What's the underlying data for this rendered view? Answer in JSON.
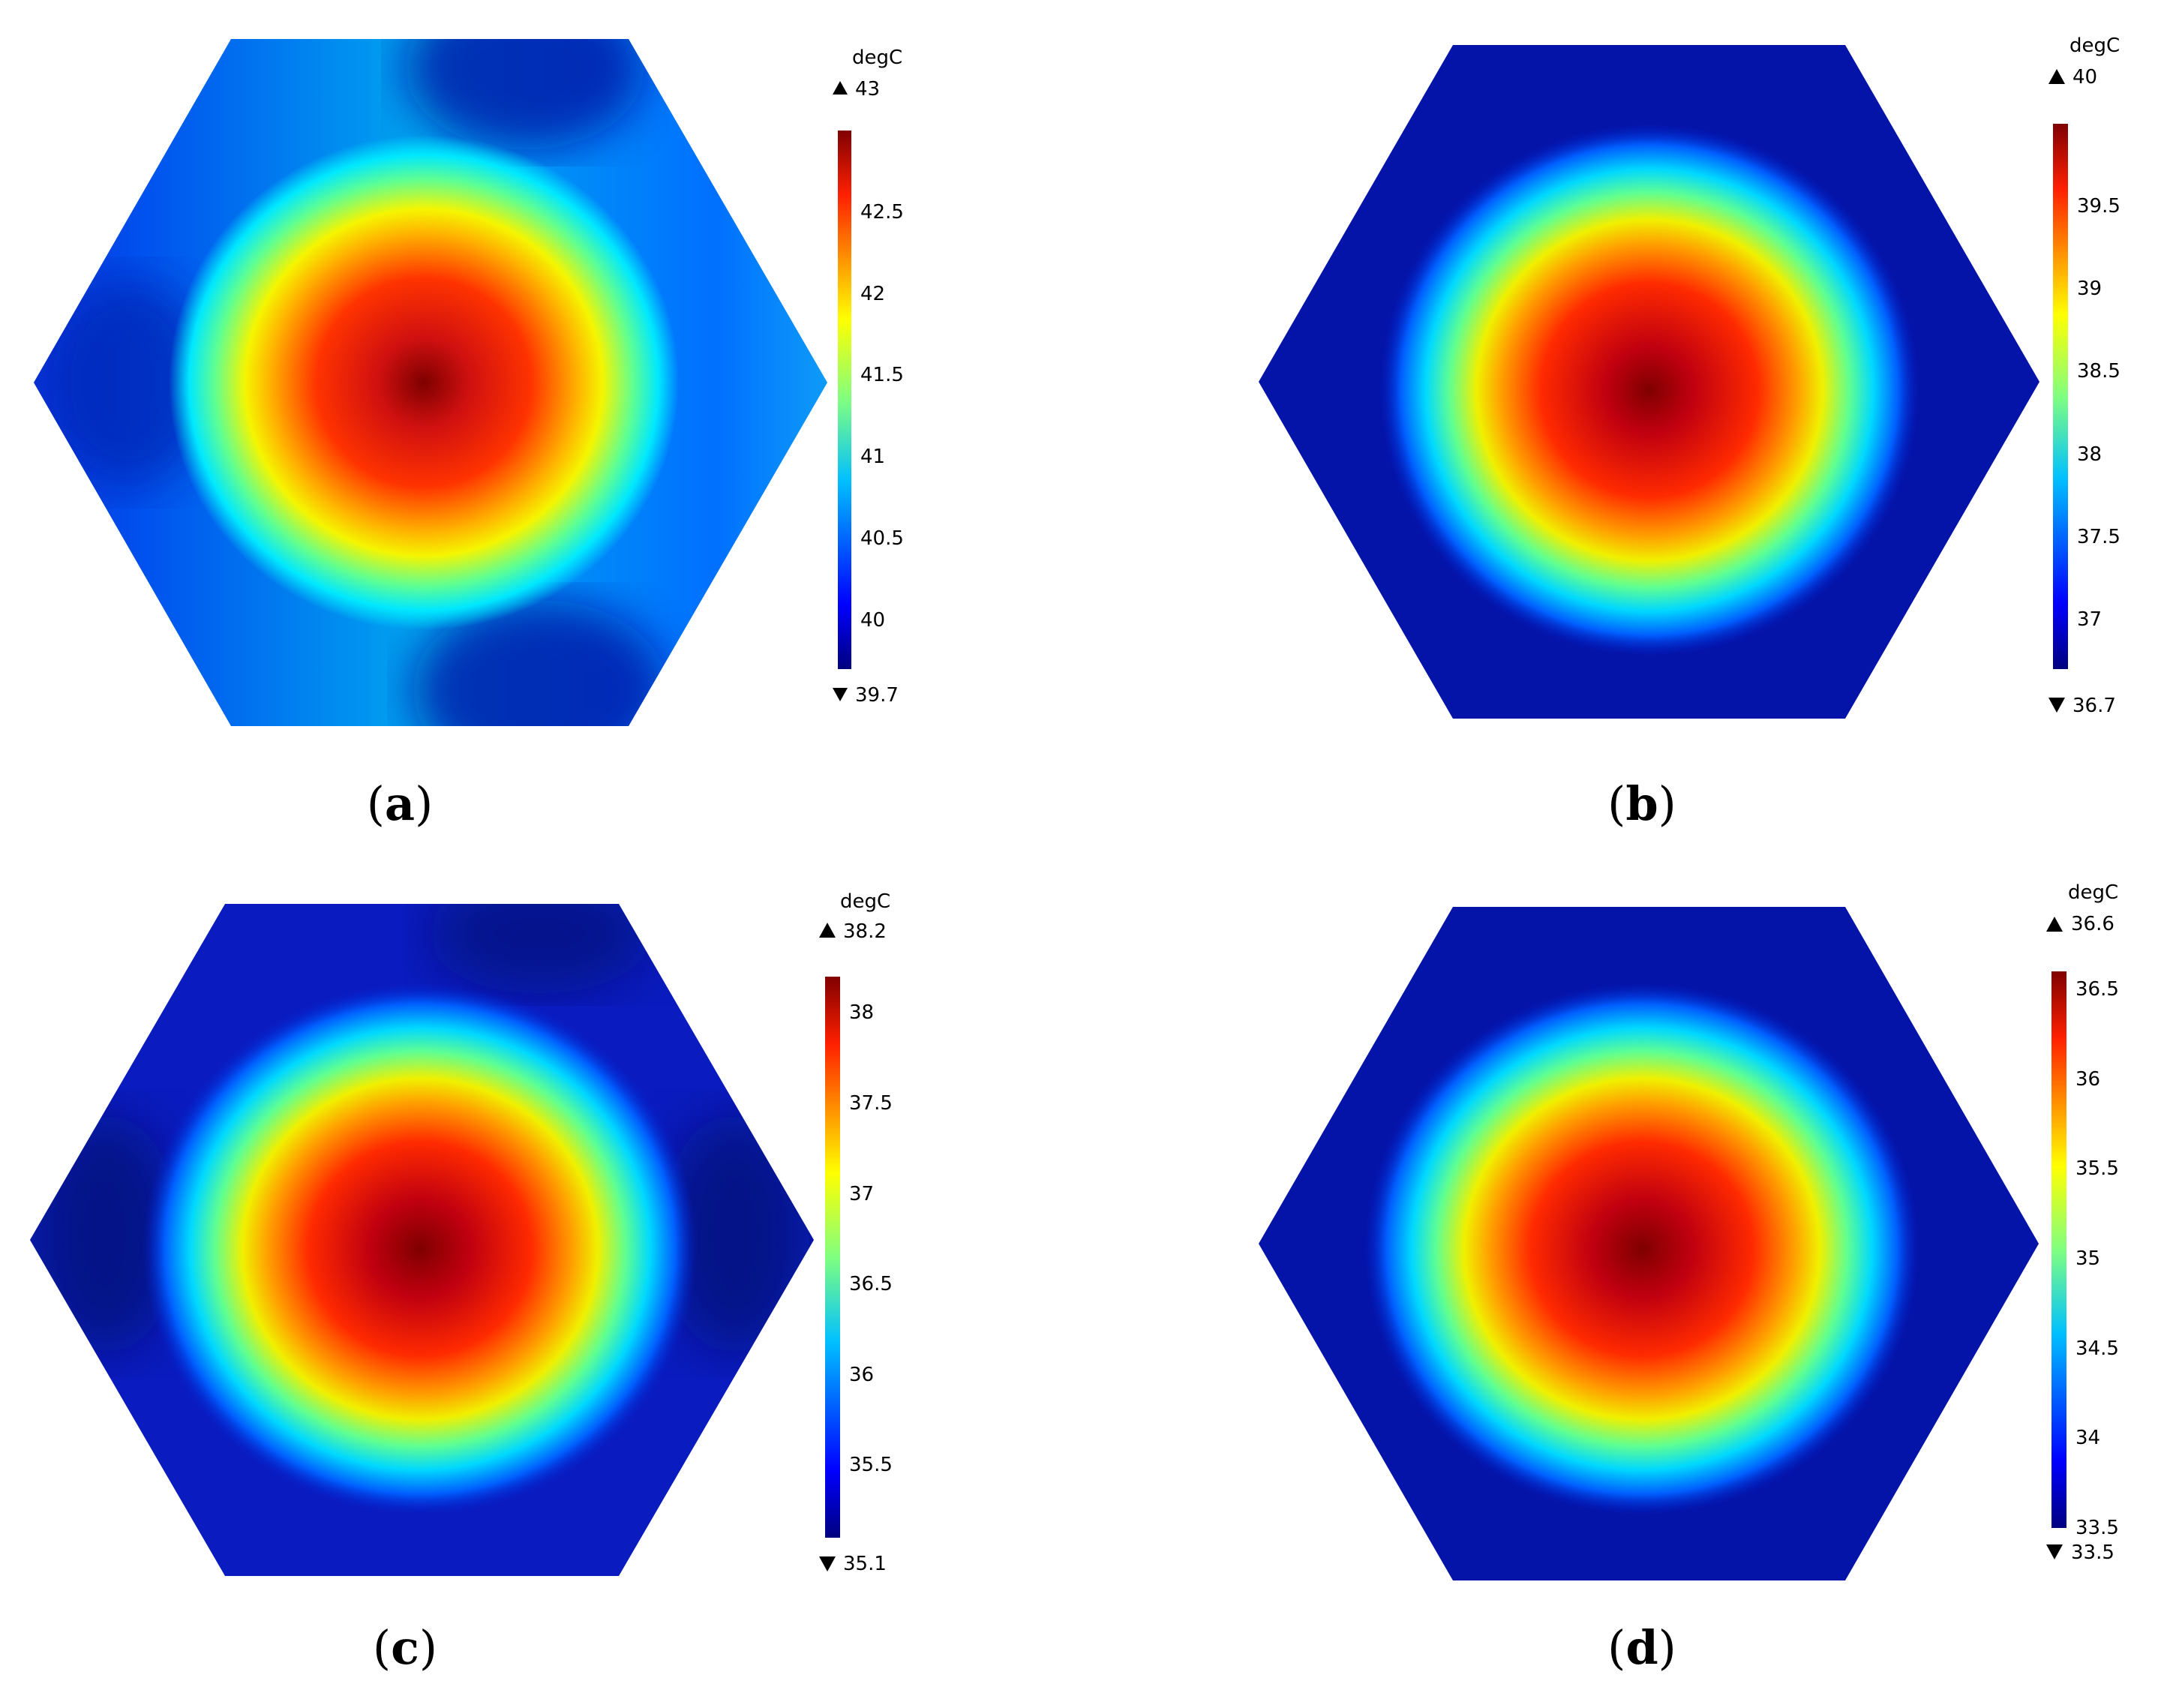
{
  "chart_data": [
    {
      "type": "heatmap",
      "panel_label": "a",
      "unit": "degC",
      "max": "43",
      "min": "39.7",
      "ticks": [
        "40",
        "40.5",
        "41",
        "41.5",
        "42",
        "42.5"
      ],
      "range": [
        39.7,
        43
      ],
      "hotspot": {
        "cx": 0.5,
        "cy": 0.5
      },
      "background_value": 40.9,
      "shape": "hexagon",
      "colormap": "jet"
    },
    {
      "type": "heatmap",
      "panel_label": "b",
      "unit": "degC",
      "max": "40",
      "min": "36.7",
      "ticks": [
        "37",
        "37.5",
        "38",
        "38.5",
        "39",
        "39.5"
      ],
      "range": [
        36.7,
        40
      ],
      "hotspot": {
        "cx": 0.5,
        "cy": 0.5
      },
      "background_value": 36.8,
      "shape": "hexagon",
      "colormap": "jet"
    },
    {
      "type": "heatmap",
      "panel_label": "c",
      "unit": "degC",
      "max": "38.2",
      "min": "35.1",
      "ticks": [
        "35.5",
        "36",
        "36.5",
        "37",
        "37.5",
        "38"
      ],
      "range": [
        35.1,
        38.2
      ],
      "hotspot": {
        "cx": 0.5,
        "cy": 0.5
      },
      "background_value": 35.2,
      "shape": "hexagon",
      "colormap": "jet"
    },
    {
      "type": "heatmap",
      "panel_label": "d",
      "unit": "degC",
      "max": "36.6",
      "min": "33.5",
      "ticks": [
        "33.5",
        "34",
        "34.5",
        "35",
        "35.5",
        "36",
        "36.5"
      ],
      "range": [
        33.5,
        36.6
      ],
      "hotspot": {
        "cx": 0.5,
        "cy": 0.5
      },
      "background_value": 33.6,
      "shape": "hexagon",
      "colormap": "jet"
    }
  ]
}
